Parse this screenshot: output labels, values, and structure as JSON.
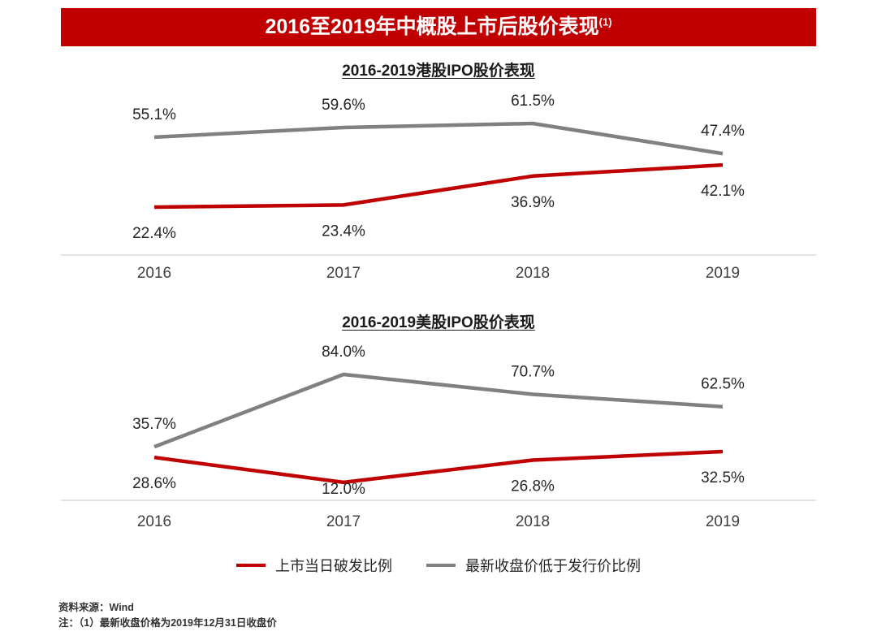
{
  "banner": {
    "title": "2016至2019年中概股上市后股价表现",
    "superscript": "(1)",
    "bg_color": "#C00000",
    "text_color": "#FFFFFF"
  },
  "chart_data": [
    {
      "type": "line",
      "title": "2016-2019港股IPO股价表现",
      "categories": [
        "2016",
        "2017",
        "2018",
        "2019"
      ],
      "series": [
        {
          "name": "上市当日破发比例",
          "color": "#C00000",
          "values": [
            22.4,
            23.4,
            36.9,
            42.1
          ],
          "labels": [
            "22.4%",
            "23.4%",
            "36.9%",
            "42.1%"
          ],
          "label_side": "below"
        },
        {
          "name": "最新收盘价低于发行价比例",
          "color": "#808080",
          "values": [
            55.1,
            59.6,
            61.5,
            47.4
          ],
          "labels": [
            "55.1%",
            "59.6%",
            "61.5%",
            "47.4%"
          ],
          "label_side": "above"
        }
      ],
      "xlabel": "",
      "ylabel": "",
      "ylim": [
        0,
        70
      ],
      "grid": false,
      "value_label_format": "{value}%",
      "legend_position": "bottom-shared"
    },
    {
      "type": "line",
      "title": "2016-2019美股IPO股价表现",
      "categories": [
        "2016",
        "2017",
        "2018",
        "2019"
      ],
      "series": [
        {
          "name": "上市当日破发比例",
          "color": "#C00000",
          "values": [
            28.6,
            12.0,
            26.8,
            32.5
          ],
          "labels": [
            "28.6%",
            "12.0%",
            "26.8%",
            "32.5%"
          ],
          "label_side": "below"
        },
        {
          "name": "最新收盘价低于发行价比例",
          "color": "#808080",
          "values": [
            35.7,
            84.0,
            70.7,
            62.5
          ],
          "labels": [
            "35.7%",
            "84.0%",
            "70.7%",
            "62.5%"
          ],
          "label_side": "above"
        }
      ],
      "xlabel": "",
      "ylabel": "",
      "ylim": [
        0,
        95
      ],
      "grid": false,
      "value_label_format": "{value}%",
      "legend_position": "bottom-shared"
    }
  ],
  "legend": [
    {
      "label": "上市当日破发比例",
      "color": "#C00000"
    },
    {
      "label": "最新收盘价低于发行价比例",
      "color": "#808080"
    }
  ],
  "footer": {
    "source": "资料来源：Wind",
    "note": "注：（1）最新收盘价格为2019年12月31日收盘价"
  }
}
